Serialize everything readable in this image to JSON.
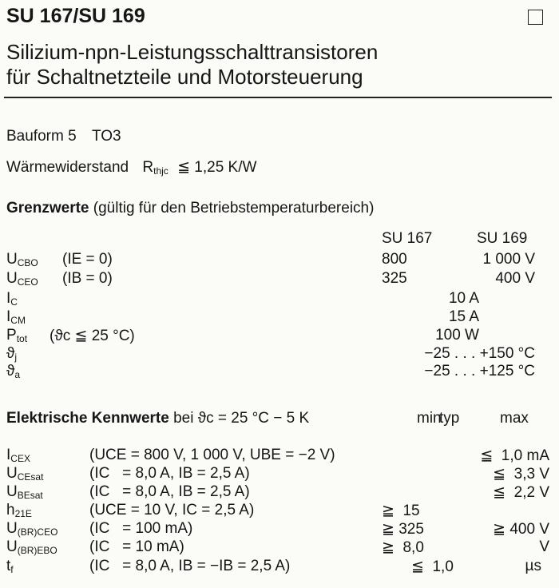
{
  "header": {
    "title": "SU 167/SU 169",
    "subtitle_line1": "Silizium-npn-Leistungsschalttransistoren",
    "subtitle_line2": "für Schaltnetzteile und Motorsteuerung"
  },
  "package": {
    "label": "Bauform 5",
    "value": "TO3"
  },
  "thermal": {
    "label": "Wärmewiderstand",
    "symbol": "R",
    "symbol_sub": "thjc",
    "value": "≦ 1,25 K/W"
  },
  "limits": {
    "heading": "Grenzwerte",
    "heading_note": "(gültig für den Betriebstemperaturbereich)",
    "col1": "SU 167",
    "col2": "SU 169",
    "rows": [
      {
        "sym": "U",
        "sub": "CBO",
        "cond": "(IE = 0)",
        "v1": "800",
        "v2": "1 000 V",
        "vc": ""
      },
      {
        "sym": "U",
        "sub": "CEO",
        "cond": "(IB = 0)",
        "v1": "325",
        "v2": "400 V",
        "vc": ""
      },
      {
        "sym": "I",
        "sub": "C",
        "cond": "",
        "v1": "",
        "v2": "",
        "vc": "10 A"
      },
      {
        "sym": "I",
        "sub": "CM",
        "cond": "",
        "v1": "",
        "v2": "",
        "vc": "15 A"
      },
      {
        "sym": "P",
        "sub": "tot",
        "cond": "(ϑc ≦ 25 °C)",
        "v1": "",
        "v2": "",
        "vc": "100 W"
      },
      {
        "sym": "ϑ",
        "sub": "j",
        "cond": "",
        "v1": "",
        "v2": "",
        "vc": "−25 . . . +150 °C"
      },
      {
        "sym": "ϑ",
        "sub": "a",
        "cond": "",
        "v1": "",
        "v2": "",
        "vc": "−25 . . . +125 °C"
      }
    ]
  },
  "electrical": {
    "heading": "Elektrische Kennwerte",
    "heading_note": "bei ϑc = 25 °C − 5 K",
    "col_min": "min",
    "col_typ": "typ",
    "col_max": "max",
    "rows": [
      {
        "sym": "I",
        "sub": "CEX",
        "cond": "(UCE = 800 V, 1 000 V, UBE = −2 V)",
        "min": "",
        "typ": "",
        "max": "≦  1,0 mA"
      },
      {
        "sym": "U",
        "sub": "CEsat",
        "cond": "(IC   = 8,0 A, IB = 2,5 A)",
        "min": "",
        "typ": "",
        "max": "≦  3,3 V"
      },
      {
        "sym": "U",
        "sub": "BEsat",
        "cond": "(IC   = 8,0 A, IB = 2,5 A)",
        "min": "",
        "typ": "",
        "max": "≦  2,2 V"
      },
      {
        "sym": "h",
        "sub": "21E",
        "cond": "(UCE = 10 V, IC = 2,5 A)",
        "min": "≧  15",
        "typ": "",
        "max": ""
      },
      {
        "sym": "U",
        "sub": "(BR)CEO",
        "cond": "(IC   = 100 mA)",
        "min": "≧ 325",
        "typ": "",
        "max": "≧ 400 V"
      },
      {
        "sym": "U",
        "sub": "(BR)EBO",
        "cond": "(IC   = 10 mA)",
        "min": "≧  8,0",
        "typ": "",
        "max": "V"
      },
      {
        "sym": "t",
        "sub": "f",
        "cond": "(IC   = 8,0 A, IB = −IB = 2,5 A)",
        "min": "",
        "typ": "≦  1,0",
        "max": "µs"
      }
    ]
  }
}
